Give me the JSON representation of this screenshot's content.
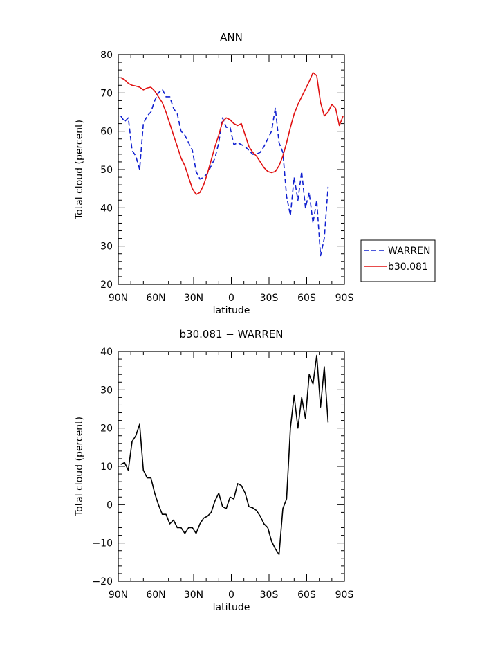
{
  "chart_data": [
    {
      "type": "line",
      "title": "ANN",
      "xlabel": "latitude",
      "ylabel": "Total cloud (percent)",
      "xlim": [
        90,
        -90
      ],
      "ylim": [
        20,
        80
      ],
      "x_ticks": [
        90,
        60,
        30,
        0,
        -30,
        -60,
        -90
      ],
      "x_tick_labels": [
        "90N",
        "60N",
        "30N",
        "0",
        "30S",
        "60S",
        "90S"
      ],
      "y_ticks": [
        20,
        30,
        40,
        50,
        60,
        70,
        80
      ],
      "y_tick_labels": [
        "20",
        "30",
        "40",
        "50",
        "60",
        "70",
        "80"
      ],
      "legend_position": "right-bottom",
      "series": [
        {
          "name": "WARREN",
          "color": "#1020d0",
          "dash": "dashed",
          "x": [
            88,
            85,
            82,
            79,
            76,
            73,
            70,
            67,
            64,
            61,
            58,
            55,
            52,
            49,
            46,
            43,
            40,
            37,
            34,
            31,
            28,
            25,
            22,
            19,
            16,
            13,
            10,
            7,
            4,
            1,
            -2,
            -5,
            -8,
            -11,
            -14,
            -17,
            -20,
            -23,
            -26,
            -29,
            -32,
            -35,
            -38,
            -41,
            -44,
            -47,
            -50,
            -53,
            -56,
            -59,
            -62,
            -65,
            -68,
            -71,
            -74,
            -77
          ],
          "y": [
            64,
            62.5,
            63.5,
            55,
            53.5,
            50,
            62,
            64,
            65,
            68,
            70,
            71,
            69,
            69,
            66,
            64.5,
            60,
            59,
            57,
            55,
            49.5,
            47.5,
            48,
            49,
            51,
            53,
            57,
            63.5,
            61,
            61,
            56.5,
            57,
            56.5,
            56,
            55,
            54,
            54,
            54.5,
            56,
            58,
            60,
            66,
            57,
            54.5,
            43,
            38,
            48,
            42,
            49.5,
            40,
            44,
            36,
            42,
            27.5,
            32,
            45.5
          ]
        },
        {
          "name": "b30.081",
          "color": "#e01010",
          "dash": "solid",
          "x": [
            88,
            85,
            82,
            79,
            76,
            73,
            70,
            67,
            64,
            61,
            58,
            55,
            52,
            49,
            46,
            43,
            40,
            37,
            34,
            31,
            28,
            25,
            22,
            19,
            16,
            13,
            10,
            7,
            4,
            1,
            -2,
            -5,
            -8,
            -11,
            -14,
            -17,
            -20,
            -23,
            -26,
            -29,
            -32,
            -35,
            -38,
            -41,
            -44,
            -47,
            -50,
            -53,
            -56,
            -59,
            -62,
            -65,
            -68,
            -71,
            -74,
            -77,
            -80,
            -83,
            -86,
            -89
          ],
          "y": [
            74,
            73.5,
            72.5,
            72,
            71.8,
            71.5,
            70.8,
            71.3,
            71.5,
            70.5,
            69,
            67.5,
            65,
            62,
            59,
            56,
            53,
            51,
            48,
            45,
            43.5,
            44,
            46,
            49,
            52.5,
            56,
            59,
            62.5,
            63.5,
            63,
            62,
            61.5,
            62,
            59,
            56,
            54.5,
            53.5,
            52,
            50.5,
            49.5,
            49.2,
            49.5,
            51,
            53.5,
            57,
            61,
            64.5,
            67,
            69,
            71,
            73,
            75.3,
            74.5,
            67.5,
            64,
            65,
            67,
            66,
            61.5,
            64
          ]
        }
      ]
    },
    {
      "type": "line",
      "title": "b30.081 − WARREN",
      "xlabel": "latitude",
      "ylabel": "Total cloud (percent)",
      "xlim": [
        90,
        -90
      ],
      "ylim": [
        -20,
        40
      ],
      "x_ticks": [
        90,
        60,
        30,
        0,
        -30,
        -60,
        -90
      ],
      "x_tick_labels": [
        "90N",
        "60N",
        "30N",
        "0",
        "30S",
        "60S",
        "90S"
      ],
      "y_ticks": [
        -20,
        -10,
        0,
        10,
        20,
        30,
        40
      ],
      "y_tick_labels": [
        "−20",
        "−10",
        "0",
        "10",
        "20",
        "30",
        "40"
      ],
      "series": [
        {
          "color": "#000000",
          "dash": "solid",
          "x": [
            88,
            85,
            82,
            79,
            76,
            73,
            70,
            67,
            64,
            61,
            58,
            55,
            52,
            49,
            46,
            43,
            40,
            37,
            34,
            31,
            28,
            25,
            22,
            19,
            16,
            13,
            10,
            7,
            4,
            1,
            -2,
            -5,
            -8,
            -11,
            -14,
            -17,
            -20,
            -23,
            -26,
            -29,
            -32,
            -35,
            -38,
            -41,
            -44,
            -47,
            -50,
            -53,
            -56,
            -59,
            -62,
            -65,
            -68,
            -71,
            -74,
            -77
          ],
          "y": [
            10.5,
            11,
            9,
            16.5,
            18,
            21,
            9,
            7,
            7,
            3,
            0,
            -2.5,
            -2.5,
            -5,
            -4,
            -6,
            -6,
            -7.5,
            -6,
            -6,
            -7.5,
            -5,
            -3.5,
            -3,
            -2,
            1,
            3,
            -0.5,
            -1,
            2,
            1.5,
            5.5,
            5,
            3,
            -0.5,
            -0.8,
            -1.5,
            -3,
            -5,
            -6,
            -9.5,
            -11.5,
            -13,
            -1,
            1.5,
            20,
            28.5,
            20,
            28,
            22.5,
            34,
            31.5,
            39,
            25.5,
            36,
            21.5
          ]
        }
      ]
    }
  ]
}
